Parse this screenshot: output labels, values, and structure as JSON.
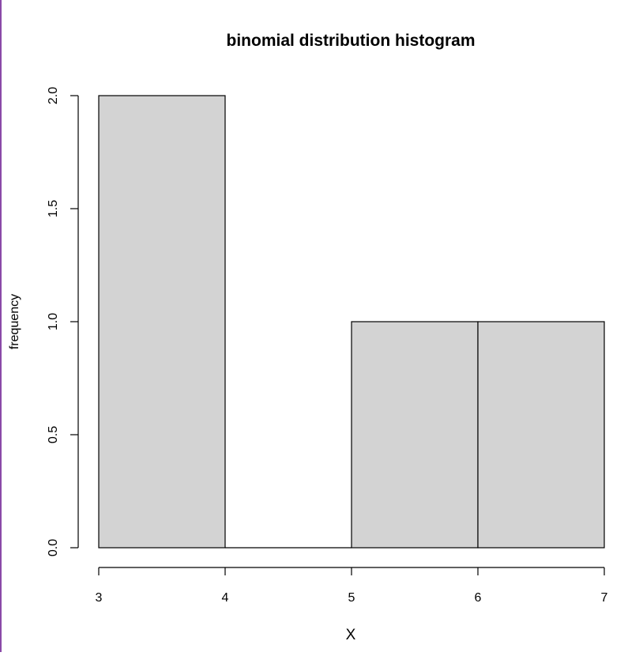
{
  "chart_data": {
    "type": "bar",
    "title": "binomial distribution histogram",
    "xlabel": "X",
    "ylabel": "frequency",
    "bins": [
      {
        "from": 3,
        "to": 4,
        "count": 2
      },
      {
        "from": 4,
        "to": 5,
        "count": 0
      },
      {
        "from": 5,
        "to": 6,
        "count": 1
      },
      {
        "from": 6,
        "to": 7,
        "count": 1
      }
    ],
    "xlim": [
      3,
      7
    ],
    "ylim": [
      0,
      2
    ],
    "x_ticks": [
      "3",
      "4",
      "5",
      "6",
      "7"
    ],
    "y_ticks": [
      "0.0",
      "0.5",
      "1.0",
      "1.5",
      "2.0"
    ],
    "bar_color": "#d3d3d3",
    "edge_color": "#000000",
    "grid": false,
    "legend": "none"
  }
}
